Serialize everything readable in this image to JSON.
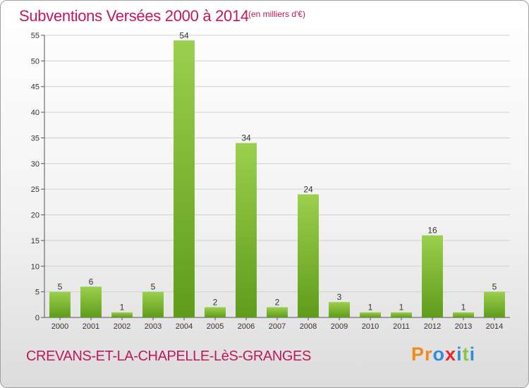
{
  "header": {
    "title": "Subventions Versées 2000 à 2014",
    "subtitle": "(en milliers d'€)"
  },
  "footer": {
    "commune": "CREVANS-ET-LA-CHAPELLE-LèS-GRANGES",
    "logo_text": "Proxiti",
    "logo_letters": [
      {
        "char": "P",
        "color": "#f08a1c"
      },
      {
        "char": "r",
        "color": "#f08a1c"
      },
      {
        "char": "o",
        "color": "#2e8fd8"
      },
      {
        "char": "x",
        "color": "#e8262a"
      },
      {
        "char": "i",
        "color": "#2e8fd8"
      },
      {
        "char": "t",
        "color": "#8cc63e"
      },
      {
        "char": "i",
        "color": "#2e8fd8"
      }
    ]
  },
  "colors": {
    "title": "#c0185a",
    "bar_light": "#9ccf4e",
    "bar_dark": "#5e9c1a",
    "grid": "#d0d0d0"
  },
  "chart_data": {
    "type": "bar",
    "title": "Subventions Versées 2000 à 2014",
    "subtitle": "(en milliers d'€)",
    "categories": [
      "2000",
      "2001",
      "2002",
      "2003",
      "2004",
      "2005",
      "2006",
      "2007",
      "2008",
      "2009",
      "2010",
      "2011",
      "2012",
      "2013",
      "2014"
    ],
    "values": [
      5,
      6,
      1,
      5,
      54,
      2,
      34,
      2,
      24,
      3,
      1,
      1,
      16,
      1,
      5
    ],
    "data_labels": [
      "5",
      "6",
      "1",
      "5",
      "54",
      "2",
      "34",
      "2",
      "24",
      "3",
      "1",
      "1",
      "16",
      "1",
      "5"
    ],
    "ylim": [
      0,
      55
    ],
    "yticks": [
      0,
      5,
      10,
      15,
      20,
      25,
      30,
      35,
      40,
      45,
      50,
      55
    ],
    "grid": "horizontal",
    "xlabel": "",
    "ylabel": ""
  }
}
